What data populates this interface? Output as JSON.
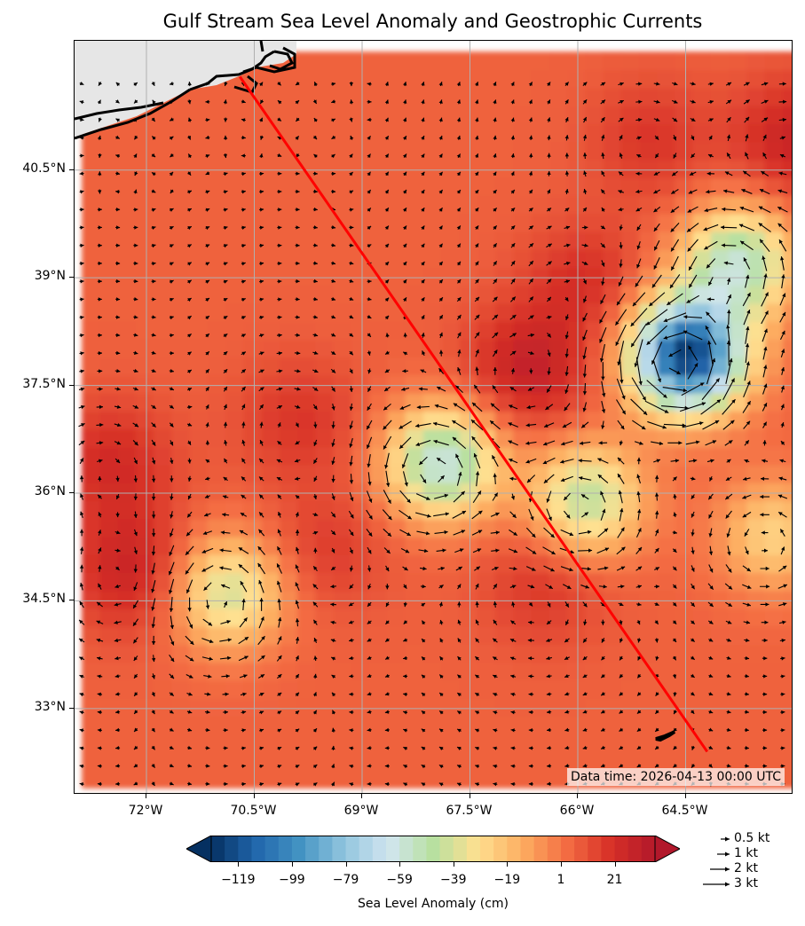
{
  "title": "Gulf Stream Sea Level Anomaly and Geostrophic Currents",
  "timestamp": "Data time: 2026-04-13 00:00 UTC",
  "axes": {
    "lon_range": [
      -73.0,
      -63.0
    ],
    "lat_range": [
      31.8,
      42.3
    ],
    "x_ticks": [
      "72°W",
      "70.5°W",
      "69°W",
      "67.5°W",
      "66°W",
      "64.5°W"
    ],
    "x_tick_values": [
      -72.0,
      -70.5,
      -69.0,
      -67.5,
      -66.0,
      -64.5
    ],
    "y_ticks": [
      "40.5°N",
      "39°N",
      "37.5°N",
      "36°N",
      "34.5°N",
      "33°N"
    ],
    "y_tick_values": [
      40.5,
      39.0,
      37.5,
      36.0,
      34.5,
      33.0
    ],
    "grid": true
  },
  "colorbar": {
    "label": "Sea Level Anomaly (cm)",
    "ticks": [
      "−119",
      "−99",
      "−79",
      "−59",
      "−39",
      "−19",
      "1",
      "21"
    ],
    "tick_values": [
      -119,
      -99,
      -79,
      -59,
      -39,
      -19,
      1,
      21
    ],
    "range": [
      -129,
      36
    ],
    "colormap": "RdYlBu_r",
    "extend": "both"
  },
  "quiver_key": {
    "labels": [
      "0.5 kt",
      "1 kt",
      "2 kt",
      "3 kt"
    ],
    "values_kt": [
      0.5,
      1,
      2,
      3
    ]
  },
  "transect": {
    "color": "#ff0000",
    "start": {
      "lon": -70.7,
      "lat": 41.8
    },
    "end": {
      "lon": -64.2,
      "lat": 32.4
    }
  },
  "chart_data": {
    "type": "heatmap",
    "title": "Gulf Stream Sea Level Anomaly and Geostrophic Currents",
    "xlabel": "",
    "ylabel": "",
    "units": "cm",
    "background_sla_cm": 6,
    "anomaly_features": [
      {
        "lon": -66.8,
        "lat": 37.6,
        "sla_cm": 28,
        "kind": "warm"
      },
      {
        "lon": -72.3,
        "lat": 34.8,
        "sla_cm": 26,
        "kind": "warm"
      },
      {
        "lon": -72.6,
        "lat": 36.3,
        "sla_cm": 22,
        "kind": "warm"
      },
      {
        "lon": -70.0,
        "lat": 36.9,
        "sla_cm": 18,
        "kind": "warm"
      },
      {
        "lon": -65.1,
        "lat": 40.8,
        "sla_cm": 18,
        "kind": "warm"
      },
      {
        "lon": -63.1,
        "lat": 40.8,
        "sla_cm": 26,
        "kind": "warm"
      },
      {
        "lon": -66.0,
        "lat": 38.8,
        "sla_cm": 20,
        "kind": "warm"
      },
      {
        "lon": -66.6,
        "lat": 34.6,
        "sla_cm": 18,
        "kind": "warm"
      },
      {
        "lon": -69.6,
        "lat": 35.1,
        "sla_cm": 16,
        "kind": "warm"
      },
      {
        "lon": -64.6,
        "lat": 37.8,
        "sla_cm": -125,
        "kind": "cold"
      },
      {
        "lon": -63.9,
        "lat": 39.1,
        "sla_cm": -55,
        "kind": "cold"
      },
      {
        "lon": -68.0,
        "lat": 36.3,
        "sla_cm": -60,
        "kind": "cold"
      },
      {
        "lon": -66.0,
        "lat": 35.8,
        "sla_cm": -45,
        "kind": "cold"
      },
      {
        "lon": -71.0,
        "lat": 34.5,
        "sla_cm": -40,
        "kind": "cold"
      },
      {
        "lon": -63.4,
        "lat": 35.3,
        "sla_cm": -25,
        "kind": "cold"
      }
    ],
    "grid_spacing_deg": {
      "lon": 0.25,
      "lat": 0.25
    }
  },
  "colors": {
    "land": "#e6e6e6",
    "coastline": "#000000",
    "gridline": "#b0b0b0",
    "arrows": "#000000"
  }
}
